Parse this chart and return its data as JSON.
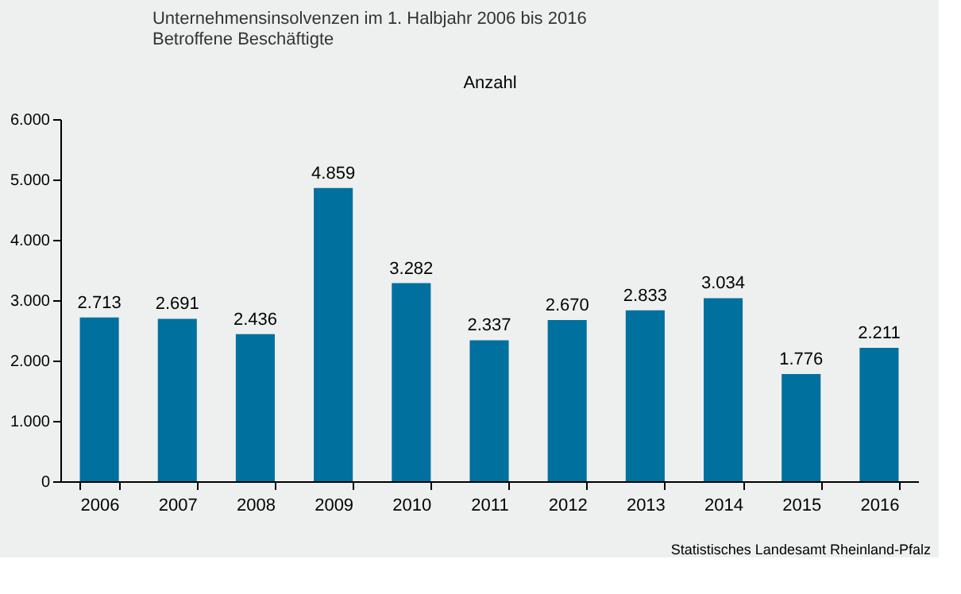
{
  "chart_data": {
    "type": "bar",
    "title": "Unternehmensinsolvenzen im 1. Halbjahr 2006 bis 2016",
    "subtitle": "Betroffene Beschäftigte",
    "ylabel": "Anzahl",
    "categories": [
      "2006",
      "2007",
      "2008",
      "2009",
      "2010",
      "2011",
      "2012",
      "2013",
      "2014",
      "2015",
      "2016"
    ],
    "values": [
      2713,
      2691,
      2436,
      4859,
      3282,
      2337,
      2670,
      2833,
      3034,
      1776,
      2211
    ],
    "value_labels": [
      "2.713",
      "2.691",
      "2.436",
      "4.859",
      "3.282",
      "2.337",
      "2.670",
      "2.833",
      "3.034",
      "1.776",
      "2.211"
    ],
    "color": "#00709f",
    "ylim": [
      0,
      6000
    ],
    "yticks": [
      {
        "value": 0,
        "label": "0"
      },
      {
        "value": 1000,
        "label": "1.000"
      },
      {
        "value": 2000,
        "label": "2.000"
      },
      {
        "value": 3000,
        "label": "3.000"
      },
      {
        "value": 4000,
        "label": "4.000"
      },
      {
        "value": 5000,
        "label": "5.000"
      },
      {
        "value": 6000,
        "label": "6.000"
      }
    ],
    "grid": false,
    "legend": false,
    "annotations": [
      "Statistisches Landesamt Rheinland-Pfalz"
    ]
  }
}
